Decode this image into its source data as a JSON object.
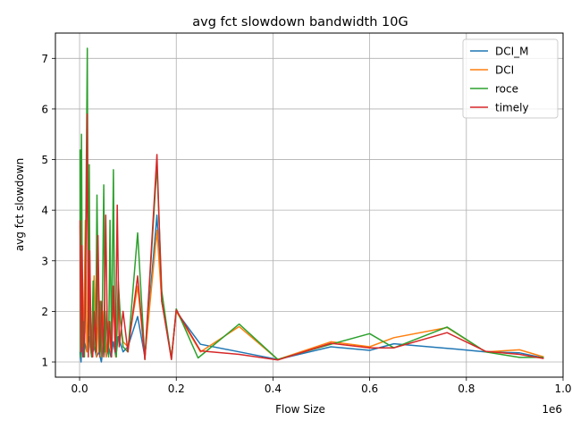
{
  "chart_data": {
    "type": "line",
    "title": "avg fct slowdown bandwidth 10G",
    "xlabel": "Flow Size",
    "ylabel": "avg fct slowdown",
    "x_scale_label": "1e6",
    "xlim": [
      -0.05,
      1.0
    ],
    "ylim": [
      0.7,
      7.5
    ],
    "x_ticks": [
      0.0,
      0.2,
      0.4,
      0.6,
      0.8,
      1.0
    ],
    "x_tick_labels": [
      "0.0",
      "0.2",
      "0.4",
      "0.6",
      "0.8",
      "1.0"
    ],
    "y_ticks": [
      1,
      2,
      3,
      4,
      5,
      6,
      7
    ],
    "y_tick_labels": [
      "1",
      "2",
      "3",
      "4",
      "5",
      "6",
      "7"
    ],
    "grid": true,
    "legend_position": "top-right",
    "series": [
      {
        "name": "DCI_M",
        "color": "#1f77b4",
        "x": [
          0.001,
          0.003,
          0.005,
          0.007,
          0.01,
          0.015,
          0.02,
          0.025,
          0.03,
          0.035,
          0.04,
          0.045,
          0.05,
          0.055,
          0.06,
          0.065,
          0.07,
          0.075,
          0.08,
          0.09,
          0.1,
          0.12,
          0.135,
          0.16,
          0.17,
          0.19,
          0.2,
          0.25,
          0.33,
          0.41,
          0.52,
          0.6,
          0.65,
          0.76,
          0.84,
          0.91,
          0.96
        ],
        "y": [
          1.2,
          1.0,
          1.6,
          1.1,
          1.4,
          1.2,
          1.5,
          1.1,
          1.3,
          1.1,
          1.2,
          1.0,
          1.4,
          1.1,
          1.3,
          1.1,
          1.4,
          1.1,
          1.5,
          1.2,
          1.3,
          1.9,
          1.1,
          3.9,
          2.2,
          1.1,
          2.0,
          1.35,
          1.2,
          1.05,
          1.3,
          1.23,
          1.36,
          1.27,
          1.2,
          1.18,
          1.08
        ]
      },
      {
        "name": "DCI",
        "color": "#ff7f0e",
        "x": [
          0.001,
          0.003,
          0.005,
          0.008,
          0.012,
          0.015,
          0.02,
          0.025,
          0.03,
          0.035,
          0.04,
          0.045,
          0.05,
          0.055,
          0.06,
          0.065,
          0.07,
          0.075,
          0.08,
          0.09,
          0.1,
          0.12,
          0.135,
          0.16,
          0.17,
          0.19,
          0.2,
          0.25,
          0.33,
          0.41,
          0.52,
          0.6,
          0.65,
          0.76,
          0.84,
          0.91,
          0.96
        ],
        "y": [
          3.7,
          1.2,
          2.5,
          1.3,
          3.8,
          1.2,
          2.4,
          1.2,
          2.7,
          1.1,
          2.3,
          1.2,
          2.0,
          1.1,
          1.8,
          1.2,
          2.2,
          1.1,
          2.1,
          1.4,
          1.3,
          2.5,
          1.1,
          3.6,
          2.2,
          1.1,
          2.0,
          1.2,
          1.7,
          1.05,
          1.4,
          1.3,
          1.48,
          1.68,
          1.2,
          1.24,
          1.1
        ]
      },
      {
        "name": "roce",
        "color": "#2ca02c",
        "x": [
          0.001,
          0.002,
          0.004,
          0.006,
          0.008,
          0.01,
          0.013,
          0.016,
          0.018,
          0.02,
          0.022,
          0.025,
          0.028,
          0.03,
          0.033,
          0.036,
          0.04,
          0.043,
          0.046,
          0.05,
          0.053,
          0.056,
          0.06,
          0.063,
          0.066,
          0.07,
          0.073,
          0.076,
          0.08,
          0.085,
          0.09,
          0.1,
          0.12,
          0.135,
          0.16,
          0.17,
          0.19,
          0.2,
          0.245,
          0.33,
          0.41,
          0.52,
          0.6,
          0.65,
          0.76,
          0.84,
          0.91,
          0.96
        ],
        "y": [
          5.2,
          1.1,
          5.5,
          1.3,
          1.8,
          1.1,
          3.9,
          7.2,
          1.2,
          4.9,
          1.3,
          1.1,
          2.6,
          1.3,
          1.2,
          4.3,
          1.2,
          2.2,
          1.1,
          4.5,
          1.2,
          2.0,
          1.1,
          3.8,
          1.2,
          4.8,
          1.3,
          1.1,
          2.6,
          1.8,
          1.3,
          1.2,
          3.55,
          1.05,
          4.9,
          2.4,
          1.05,
          2.05,
          1.08,
          1.75,
          1.05,
          1.35,
          1.56,
          1.28,
          1.69,
          1.2,
          1.09,
          1.09
        ]
      },
      {
        "name": "timely",
        "color": "#d62728",
        "x": [
          0.001,
          0.003,
          0.005,
          0.008,
          0.011,
          0.014,
          0.016,
          0.018,
          0.021,
          0.024,
          0.027,
          0.03,
          0.034,
          0.038,
          0.042,
          0.046,
          0.05,
          0.054,
          0.058,
          0.062,
          0.066,
          0.07,
          0.074,
          0.078,
          0.082,
          0.09,
          0.1,
          0.12,
          0.135,
          0.16,
          0.17,
          0.19,
          0.2,
          0.25,
          0.33,
          0.41,
          0.52,
          0.6,
          0.65,
          0.76,
          0.84,
          0.91,
          0.96
        ],
        "y": [
          3.8,
          1.2,
          3.3,
          1.1,
          1.6,
          3.9,
          5.9,
          1.1,
          3.2,
          1.3,
          1.1,
          2.0,
          1.2,
          3.5,
          1.1,
          2.2,
          1.1,
          3.9,
          1.2,
          1.8,
          1.1,
          2.5,
          1.2,
          4.1,
          1.3,
          2.0,
          1.2,
          2.7,
          1.05,
          5.1,
          2.2,
          1.05,
          2.03,
          1.22,
          1.15,
          1.04,
          1.37,
          1.28,
          1.28,
          1.58,
          1.21,
          1.15,
          1.07
        ]
      }
    ]
  }
}
